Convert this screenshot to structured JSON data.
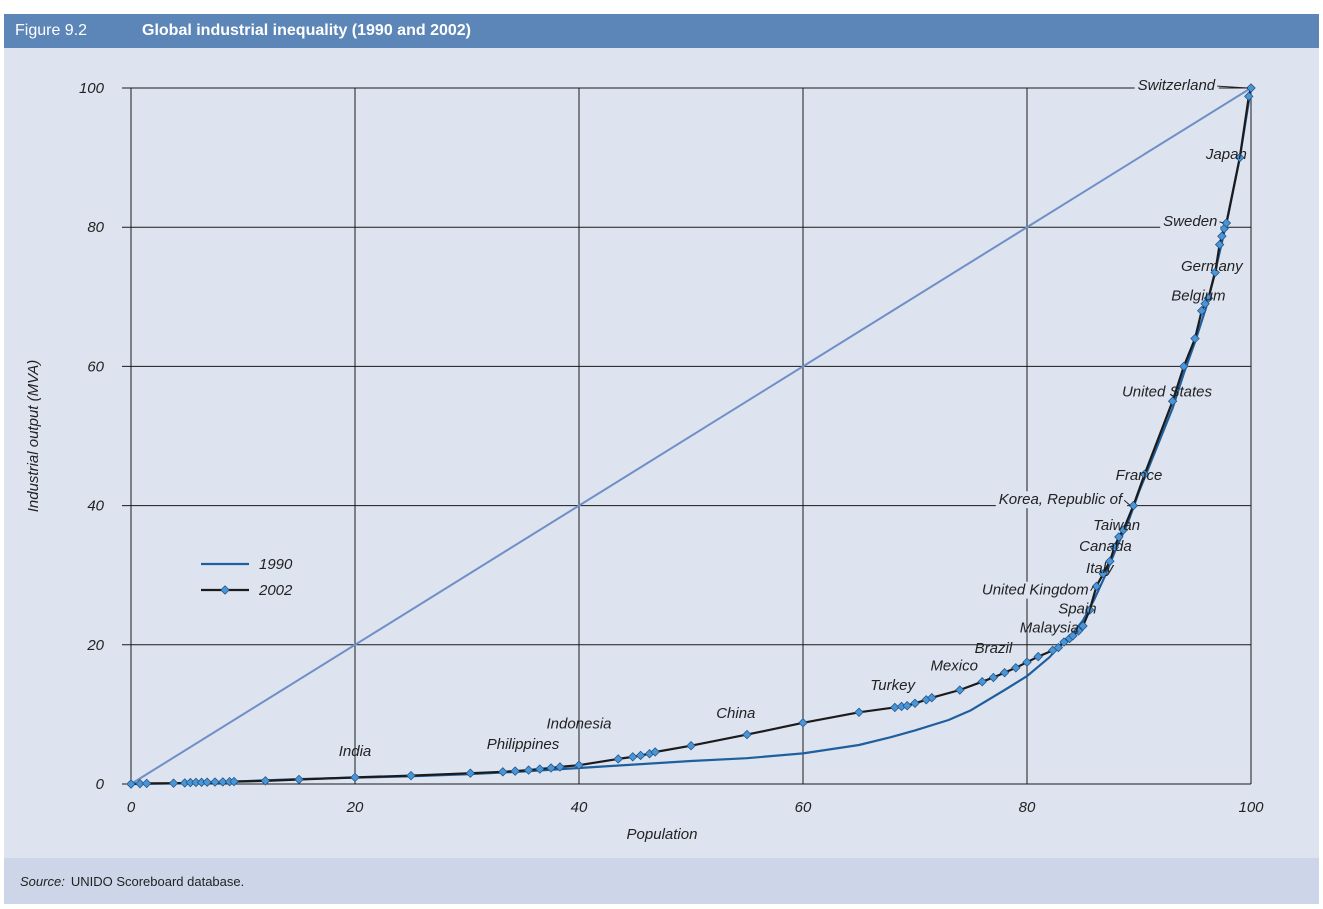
{
  "figure": {
    "number": "Figure 9.2",
    "title": "Global industrial inequality (1990 and 2002)",
    "source_label": "Source:",
    "source_text": "UNIDO Scoreboard database."
  },
  "colors": {
    "series_1990": "#1f5f9e",
    "series_2002": "#1b1b1b",
    "markers": "#4a95d6",
    "equality_line": "#6f8fc6",
    "grid": "#1a1a1a",
    "header_bg": "#5c86b8",
    "plot_bg": "#dde4f0"
  },
  "chart_data": {
    "type": "line",
    "xlabel": "Population",
    "ylabel": "Industrial output (MVA)",
    "xlim": [
      0,
      100
    ],
    "ylim": [
      0,
      100
    ],
    "xticks": [
      "0",
      "20",
      "40",
      "60",
      "80",
      "100"
    ],
    "yticks": [
      "0",
      "20",
      "40",
      "60",
      "80",
      "100"
    ],
    "grid": true,
    "legend_position": "middle-left",
    "series": [
      {
        "name": "1990",
        "markers": false,
        "points": [
          [
            0,
            0
          ],
          [
            5,
            0.1
          ],
          [
            10,
            0.4
          ],
          [
            15,
            0.7
          ],
          [
            20,
            0.9
          ],
          [
            25,
            1.1
          ],
          [
            30,
            1.4
          ],
          [
            35,
            1.8
          ],
          [
            40,
            2.3
          ],
          [
            45,
            2.8
          ],
          [
            50,
            3.3
          ],
          [
            55,
            3.7
          ],
          [
            60,
            4.4
          ],
          [
            65,
            5.6
          ],
          [
            68,
            6.8
          ],
          [
            70,
            7.7
          ],
          [
            73,
            9.2
          ],
          [
            75,
            10.6
          ],
          [
            78,
            13.5
          ],
          [
            80,
            15.5
          ],
          [
            82,
            18.2
          ],
          [
            83,
            20
          ],
          [
            84,
            21.5
          ],
          [
            85,
            23.5
          ],
          [
            86,
            26.5
          ],
          [
            87,
            30
          ],
          [
            88,
            34
          ],
          [
            89,
            37.5
          ],
          [
            90,
            42
          ],
          [
            91,
            46
          ],
          [
            92,
            50
          ],
          [
            93,
            54
          ],
          [
            94,
            59
          ],
          [
            95,
            63.5
          ],
          [
            96,
            68.5
          ],
          [
            97,
            75
          ],
          [
            98,
            82
          ],
          [
            99,
            90
          ],
          [
            100,
            100
          ]
        ]
      },
      {
        "name": "2002",
        "markers": true,
        "points": [
          [
            0,
            0
          ],
          [
            0.8,
            0.05
          ],
          [
            1.4,
            0.08
          ],
          [
            3.8,
            0.12
          ],
          [
            4.8,
            0.15
          ],
          [
            5.3,
            0.2
          ],
          [
            5.8,
            0.22
          ],
          [
            6.3,
            0.24
          ],
          [
            6.8,
            0.26
          ],
          [
            7.5,
            0.28
          ],
          [
            8.2,
            0.3
          ],
          [
            8.8,
            0.33
          ],
          [
            9.2,
            0.35
          ],
          [
            12,
            0.45
          ],
          [
            15,
            0.65
          ],
          [
            20,
            0.95
          ],
          [
            25,
            1.2
          ],
          [
            30.3,
            1.55
          ],
          [
            33.2,
            1.75
          ],
          [
            34.3,
            1.85
          ],
          [
            35.5,
            2.0
          ],
          [
            36.5,
            2.15
          ],
          [
            37.5,
            2.3
          ],
          [
            38.3,
            2.45
          ],
          [
            40,
            2.7
          ],
          [
            43.5,
            3.6
          ],
          [
            44.8,
            3.9
          ],
          [
            45.5,
            4.1
          ],
          [
            46.3,
            4.35
          ],
          [
            46.8,
            4.6
          ],
          [
            50,
            5.5
          ],
          [
            55,
            7.1
          ],
          [
            60,
            8.8
          ],
          [
            65,
            10.3
          ],
          [
            68.2,
            11.0
          ],
          [
            68.8,
            11.15
          ],
          [
            69.3,
            11.25
          ],
          [
            70,
            11.6
          ],
          [
            71,
            12.1
          ],
          [
            71.5,
            12.4
          ],
          [
            74,
            13.5
          ],
          [
            76,
            14.7
          ],
          [
            77,
            15.3
          ],
          [
            78,
            16.0
          ],
          [
            79,
            16.7
          ],
          [
            80,
            17.5
          ],
          [
            81,
            18.3
          ],
          [
            82.3,
            19.2
          ],
          [
            82.8,
            19.6
          ],
          [
            83.3,
            20.4
          ],
          [
            83.8,
            20.9
          ],
          [
            84.1,
            21.3
          ],
          [
            84.6,
            22.0
          ],
          [
            85,
            22.7
          ],
          [
            85.6,
            25.0
          ],
          [
            86.2,
            28.4
          ],
          [
            86.8,
            30.2
          ],
          [
            87.4,
            32.0
          ],
          [
            87.8,
            34.0
          ],
          [
            88.2,
            35.5
          ],
          [
            88.6,
            36.5
          ],
          [
            89.5,
            40.0
          ],
          [
            90.5,
            44.5
          ],
          [
            93,
            55
          ],
          [
            94,
            60
          ],
          [
            95,
            64
          ],
          [
            95.6,
            68
          ],
          [
            95.9,
            69
          ],
          [
            96.2,
            69.8
          ],
          [
            96.8,
            73.5
          ],
          [
            97.2,
            77.5
          ],
          [
            97.4,
            78.7
          ],
          [
            97.6,
            79.8
          ],
          [
            97.8,
            80.6
          ],
          [
            99,
            90
          ],
          [
            99.8,
            98.8
          ],
          [
            100,
            100
          ]
        ]
      },
      {
        "name": "",
        "markers": false,
        "style": "equality",
        "points": [
          [
            0,
            0
          ],
          [
            100,
            100
          ]
        ]
      }
    ],
    "legend": [
      {
        "label": "1990",
        "series": 0
      },
      {
        "label": "2002",
        "series": 1
      }
    ],
    "annotations": [
      {
        "text": "India",
        "x": 20,
        "y": 4
      },
      {
        "text": "Philippines",
        "x": 35,
        "y": 5
      },
      {
        "text": "Indonesia",
        "x": 40,
        "y": 8
      },
      {
        "text": "China",
        "x": 54,
        "y": 9.5
      },
      {
        "text": "Turkey",
        "x": 68,
        "y": 13.5
      },
      {
        "text": "Mexico",
        "x": 73.5,
        "y": 16.3
      },
      {
        "text": "Brazil",
        "x": 77,
        "y": 18.8
      },
      {
        "text": "Malaysia",
        "x": 82,
        "y": 21.8
      },
      {
        "text": "Spain",
        "x": 84.5,
        "y": 24.5
      },
      {
        "text": "United Kingdom",
        "x": 85.5,
        "y": 27.2,
        "leader_to": [
          86.2,
          28.4
        ]
      },
      {
        "text": "Italy",
        "x": 86.5,
        "y": 30.3
      },
      {
        "text": "Canada",
        "x": 87,
        "y": 33.5
      },
      {
        "text": "Taiwan",
        "x": 88,
        "y": 36.5
      },
      {
        "text": "Korea, Republic of",
        "x": 88.5,
        "y": 40.2,
        "leader_to": [
          89.5,
          40.0
        ]
      },
      {
        "text": "France",
        "x": 90,
        "y": 43.7
      },
      {
        "text": "United States",
        "x": 92.5,
        "y": 55.7
      },
      {
        "text": "Belgium",
        "x": 95.3,
        "y": 69.5
      },
      {
        "text": "Germany",
        "x": 96.5,
        "y": 73.7
      },
      {
        "text": "Sweden",
        "x": 97,
        "y": 80.2,
        "leader_to": [
          97.8,
          80.6
        ]
      },
      {
        "text": "Japan",
        "x": 97.8,
        "y": 89.8
      },
      {
        "text": "Switzerland",
        "x": 96.8,
        "y": 99.7,
        "leader_to": [
          100,
          100
        ]
      }
    ]
  }
}
